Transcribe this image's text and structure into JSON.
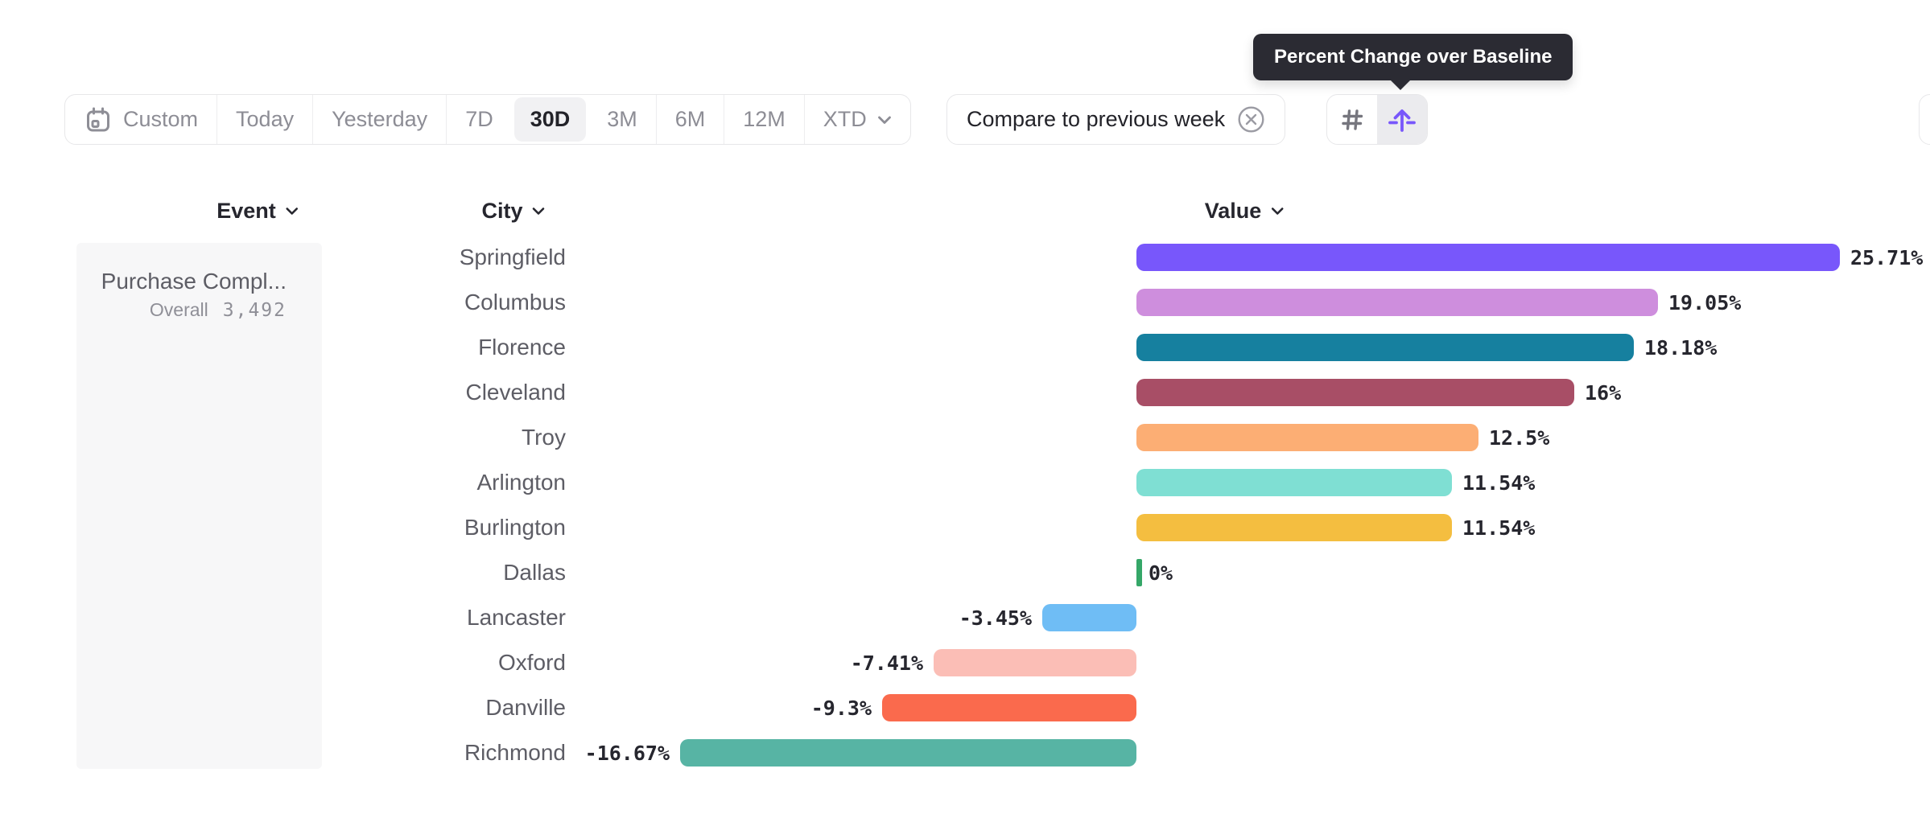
{
  "tooltip": {
    "text": "Percent Change over Baseline"
  },
  "toolbar": {
    "date_ranges": [
      {
        "label": "Custom",
        "icon": "calendar-icon"
      },
      {
        "label": "Today"
      },
      {
        "label": "Yesterday"
      },
      {
        "label": "7D"
      },
      {
        "label": "30D",
        "active": true
      },
      {
        "label": "3M"
      },
      {
        "label": "6M"
      },
      {
        "label": "12M"
      },
      {
        "label": "XTD",
        "icon": "chevron-down-icon"
      }
    ],
    "active_range": "30D",
    "compare": {
      "label": "Compare to previous week",
      "icon": "circle-x-icon"
    },
    "view_toggles": [
      {
        "name": "absolute-numbers",
        "icon": "hash-icon",
        "selected": false
      },
      {
        "name": "percent-change-over-baseline",
        "icon": "baseline-arrow-icon",
        "selected": true
      }
    ]
  },
  "columns": {
    "event": "Event",
    "city": "City",
    "value": "Value"
  },
  "event_panel": {
    "name": "Purchase Compl...",
    "overall_label": "Overall",
    "overall_value": "3,492"
  },
  "colors": {
    "accent_purple": "#7857fb",
    "tooltip_bg": "#2b2b33",
    "active_pill_bg": "#f1f1f3",
    "panel_bg": "#f7f7f8",
    "border": "#e7e7e9",
    "text_dark": "#26262e",
    "text_gray": "#5d5d65",
    "text_light": "#8d8d95"
  },
  "chart_data": {
    "type": "bar",
    "orientation": "horizontal",
    "title": "Percent Change over Baseline",
    "event": "Purchase Compl...",
    "overall_count": 3492,
    "categories": [
      "Springfield",
      "Columbus",
      "Florence",
      "Cleveland",
      "Troy",
      "Arlington",
      "Burlington",
      "Dallas",
      "Lancaster",
      "Oxford",
      "Danville",
      "Richmond"
    ],
    "values": [
      25.71,
      19.05,
      18.18,
      16,
      12.5,
      11.54,
      11.54,
      0,
      -3.45,
      -7.41,
      -9.3,
      -16.67
    ],
    "labels": [
      "25.71%",
      "19.05%",
      "18.18%",
      "16%",
      "12.5%",
      "11.54%",
      "11.54%",
      "0%",
      "-3.45%",
      "-7.41%",
      "-9.3%",
      "-16.67%"
    ],
    "bar_colors": [
      "#7857fb",
      "#ce8edd",
      "#16809f",
      "#a84e66",
      "#fcae74",
      "#7fdfd3",
      "#f4be40",
      "#35a768",
      "#6fbdf5",
      "#fbbeb6",
      "#fa6a4d",
      "#57b4a4"
    ],
    "xlim": [
      -16.67,
      25.71
    ],
    "baseline": 0,
    "grid": false,
    "legend": false
  }
}
